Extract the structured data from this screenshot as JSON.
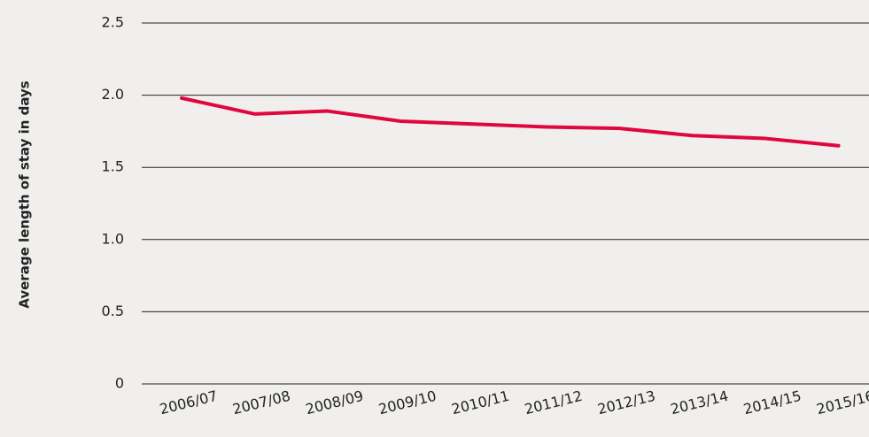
{
  "chart_data": {
    "type": "line",
    "y_label": "Average length of stay in days",
    "categories": [
      "2006/07",
      "2007/08",
      "2008/09",
      "2009/10",
      "2010/11",
      "2011/12",
      "2012/13",
      "2013/14",
      "2014/15",
      "2015/16"
    ],
    "values": [
      1.98,
      1.87,
      1.89,
      1.82,
      1.8,
      1.78,
      1.77,
      1.72,
      1.7,
      1.65
    ],
    "color": "#e0063f",
    "ylim": [
      0,
      2.5
    ],
    "yticks": [
      0,
      0.5,
      {
        "value": 1,
        "label": "1.0"
      },
      1.5,
      {
        "value": 2,
        "label": "2.0"
      },
      2.5
    ],
    "grid": true
  }
}
